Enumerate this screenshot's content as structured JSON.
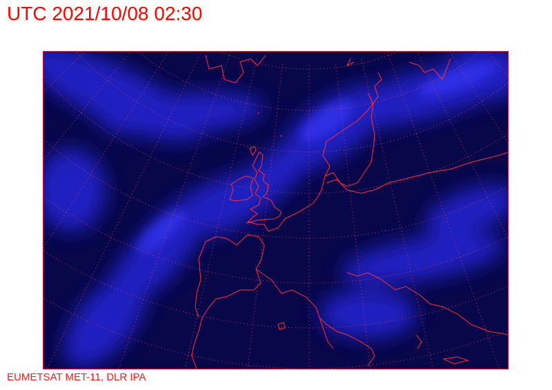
{
  "header": {
    "title": "UTC 2021/10/08 02:30"
  },
  "footer": {
    "credit": "EUMETSAT MET-11, DLR IPA"
  },
  "map": {
    "type": "satellite-image",
    "region": "Europe",
    "overlays": [
      "coastlines",
      "lat-lon-graticule"
    ],
    "colors": {
      "background": "#06063a",
      "clouds": "#2a2aff",
      "coastline": "#ff3030",
      "graticule": "#ff4040",
      "title": "#ff0000"
    }
  }
}
